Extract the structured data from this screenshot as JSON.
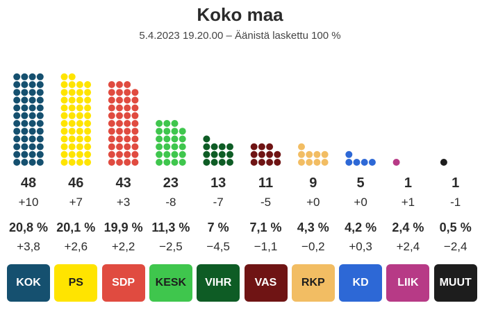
{
  "header": {
    "title": "Koko maa",
    "subtitle": "5.4.2023 19.20.00 – Äänistä laskettu 100 %"
  },
  "chart_data": {
    "type": "waffle",
    "categories": [
      "KOK",
      "PS",
      "SDP",
      "KESK",
      "VIHR",
      "VAS",
      "RKP",
      "KD",
      "LIIK",
      "MUUT"
    ],
    "seats": [
      48,
      46,
      43,
      23,
      13,
      11,
      9,
      5,
      1,
      1
    ],
    "seat_change": [
      "+10",
      "+7",
      "+3",
      "-8",
      "-7",
      "-5",
      "+0",
      "+0",
      "+1",
      "-1"
    ],
    "vote_share": [
      "20,8 %",
      "20,1 %",
      "19,9 %",
      "11,3 %",
      "7 %",
      "7,1 %",
      "4,3 %",
      "4,2 %",
      "2,4 %",
      "0,5 %"
    ],
    "vote_change": [
      "+3,8",
      "+2,6",
      "+2,2",
      "−2,5",
      "−4,5",
      "−1,1",
      "−0,2",
      "+0,3",
      "+2,4",
      "−2,4"
    ],
    "colors": [
      "#15506f",
      "#ffe400",
      "#e04b40",
      "#3fc64d",
      "#0e5c25",
      "#6f1414",
      "#f2bd63",
      "#2d68d6",
      "#b73a86",
      "#1d1d1d"
    ],
    "badge_text_colors": [
      "#ffffff",
      "#1d1d1d",
      "#ffffff",
      "#1d1d1d",
      "#ffffff",
      "#ffffff",
      "#1d1d1d",
      "#ffffff",
      "#ffffff",
      "#ffffff"
    ]
  }
}
